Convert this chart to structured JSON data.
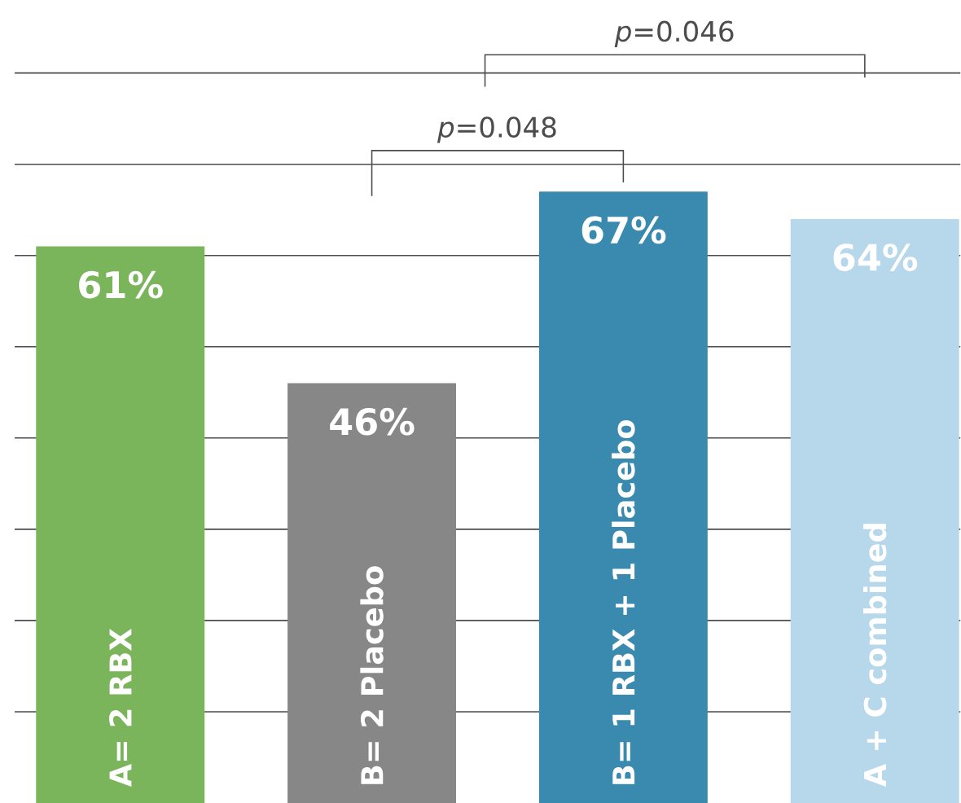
{
  "chart_data": {
    "type": "bar",
    "categories": [
      "A= 2 RBX",
      "B= 2 Placebo",
      "B= 1 RBX + 1 Placebo",
      "A + C combined"
    ],
    "values": [
      61,
      46,
      67,
      64
    ],
    "colors": [
      "#7ab55c",
      "#878787",
      "#3a8ab0",
      "#b7d7ea"
    ],
    "value_labels": [
      "61%",
      "46%",
      "67%",
      "64%"
    ],
    "yticks": [
      {
        "value": 10,
        "label": null
      },
      {
        "value": 20,
        "label": null
      },
      {
        "value": 30,
        "label": null
      },
      {
        "value": 40,
        "label": null
      },
      {
        "value": 50,
        "label": null
      },
      {
        "value": 60,
        "label": null
      },
      {
        "value": 70,
        "label": null
      },
      {
        "value": 80,
        "label": null
      }
    ],
    "grid": "y",
    "annotations": [
      "*p*=0.048",
      "*p*=0.046"
    ]
  }
}
